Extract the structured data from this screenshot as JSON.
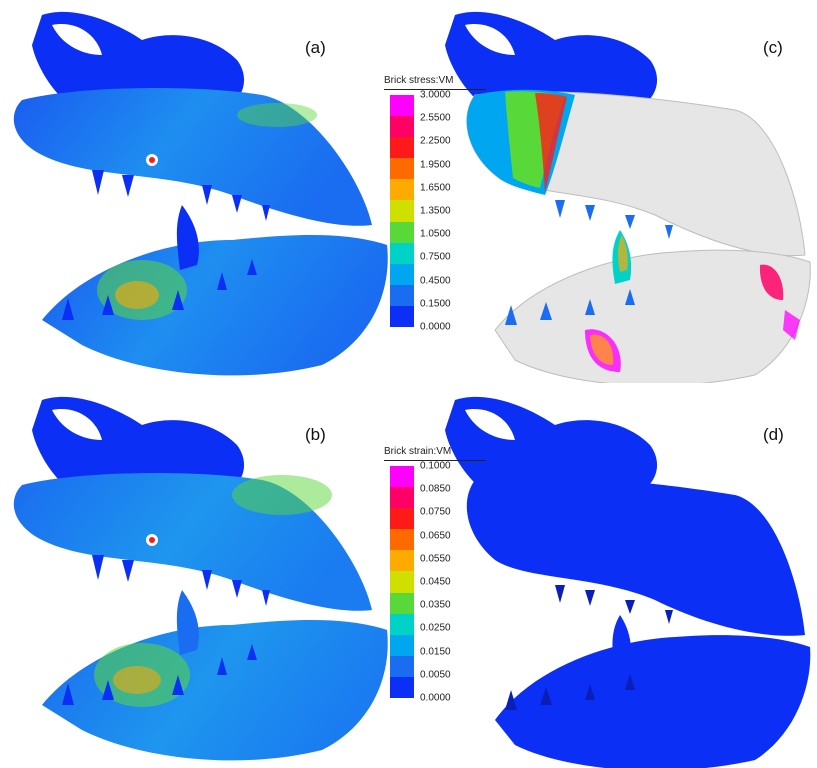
{
  "panels": [
    {
      "label": "(a)",
      "variant": "stress"
    },
    {
      "label": "(b)",
      "variant": "strain"
    },
    {
      "label": "(c)",
      "variant": "over"
    },
    {
      "label": "(d)",
      "variant": "low"
    }
  ],
  "colorbars": {
    "stress": {
      "title": "Brick stress:VM",
      "ticks": [
        "3.0000",
        "2.5500",
        "2.2500",
        "1.9500",
        "1.6500",
        "1.3500",
        "1.0500",
        "0.7500",
        "0.4500",
        "0.1500",
        "0.0000"
      ]
    },
    "strain": {
      "title": "Brick strain:VM",
      "ticks": [
        "0.1000",
        "0.0850",
        "0.0750",
        "0.0650",
        "0.0550",
        "0.0450",
        "0.0350",
        "0.0250",
        "0.0150",
        "0.0050",
        "0.0000"
      ]
    }
  },
  "colors": {
    "scale": [
      "#ff00ff",
      "#ff0066",
      "#ff1a1a",
      "#ff6a00",
      "#ffaa00",
      "#cfe000",
      "#59d83a",
      "#00d2c8",
      "#00a6f0",
      "#1a6cf0",
      "#0b2ff5"
    ],
    "skull_blue": "#0b2ff5",
    "skull_dark": "#0a1eb8",
    "over_white": "#e6e6e6"
  }
}
